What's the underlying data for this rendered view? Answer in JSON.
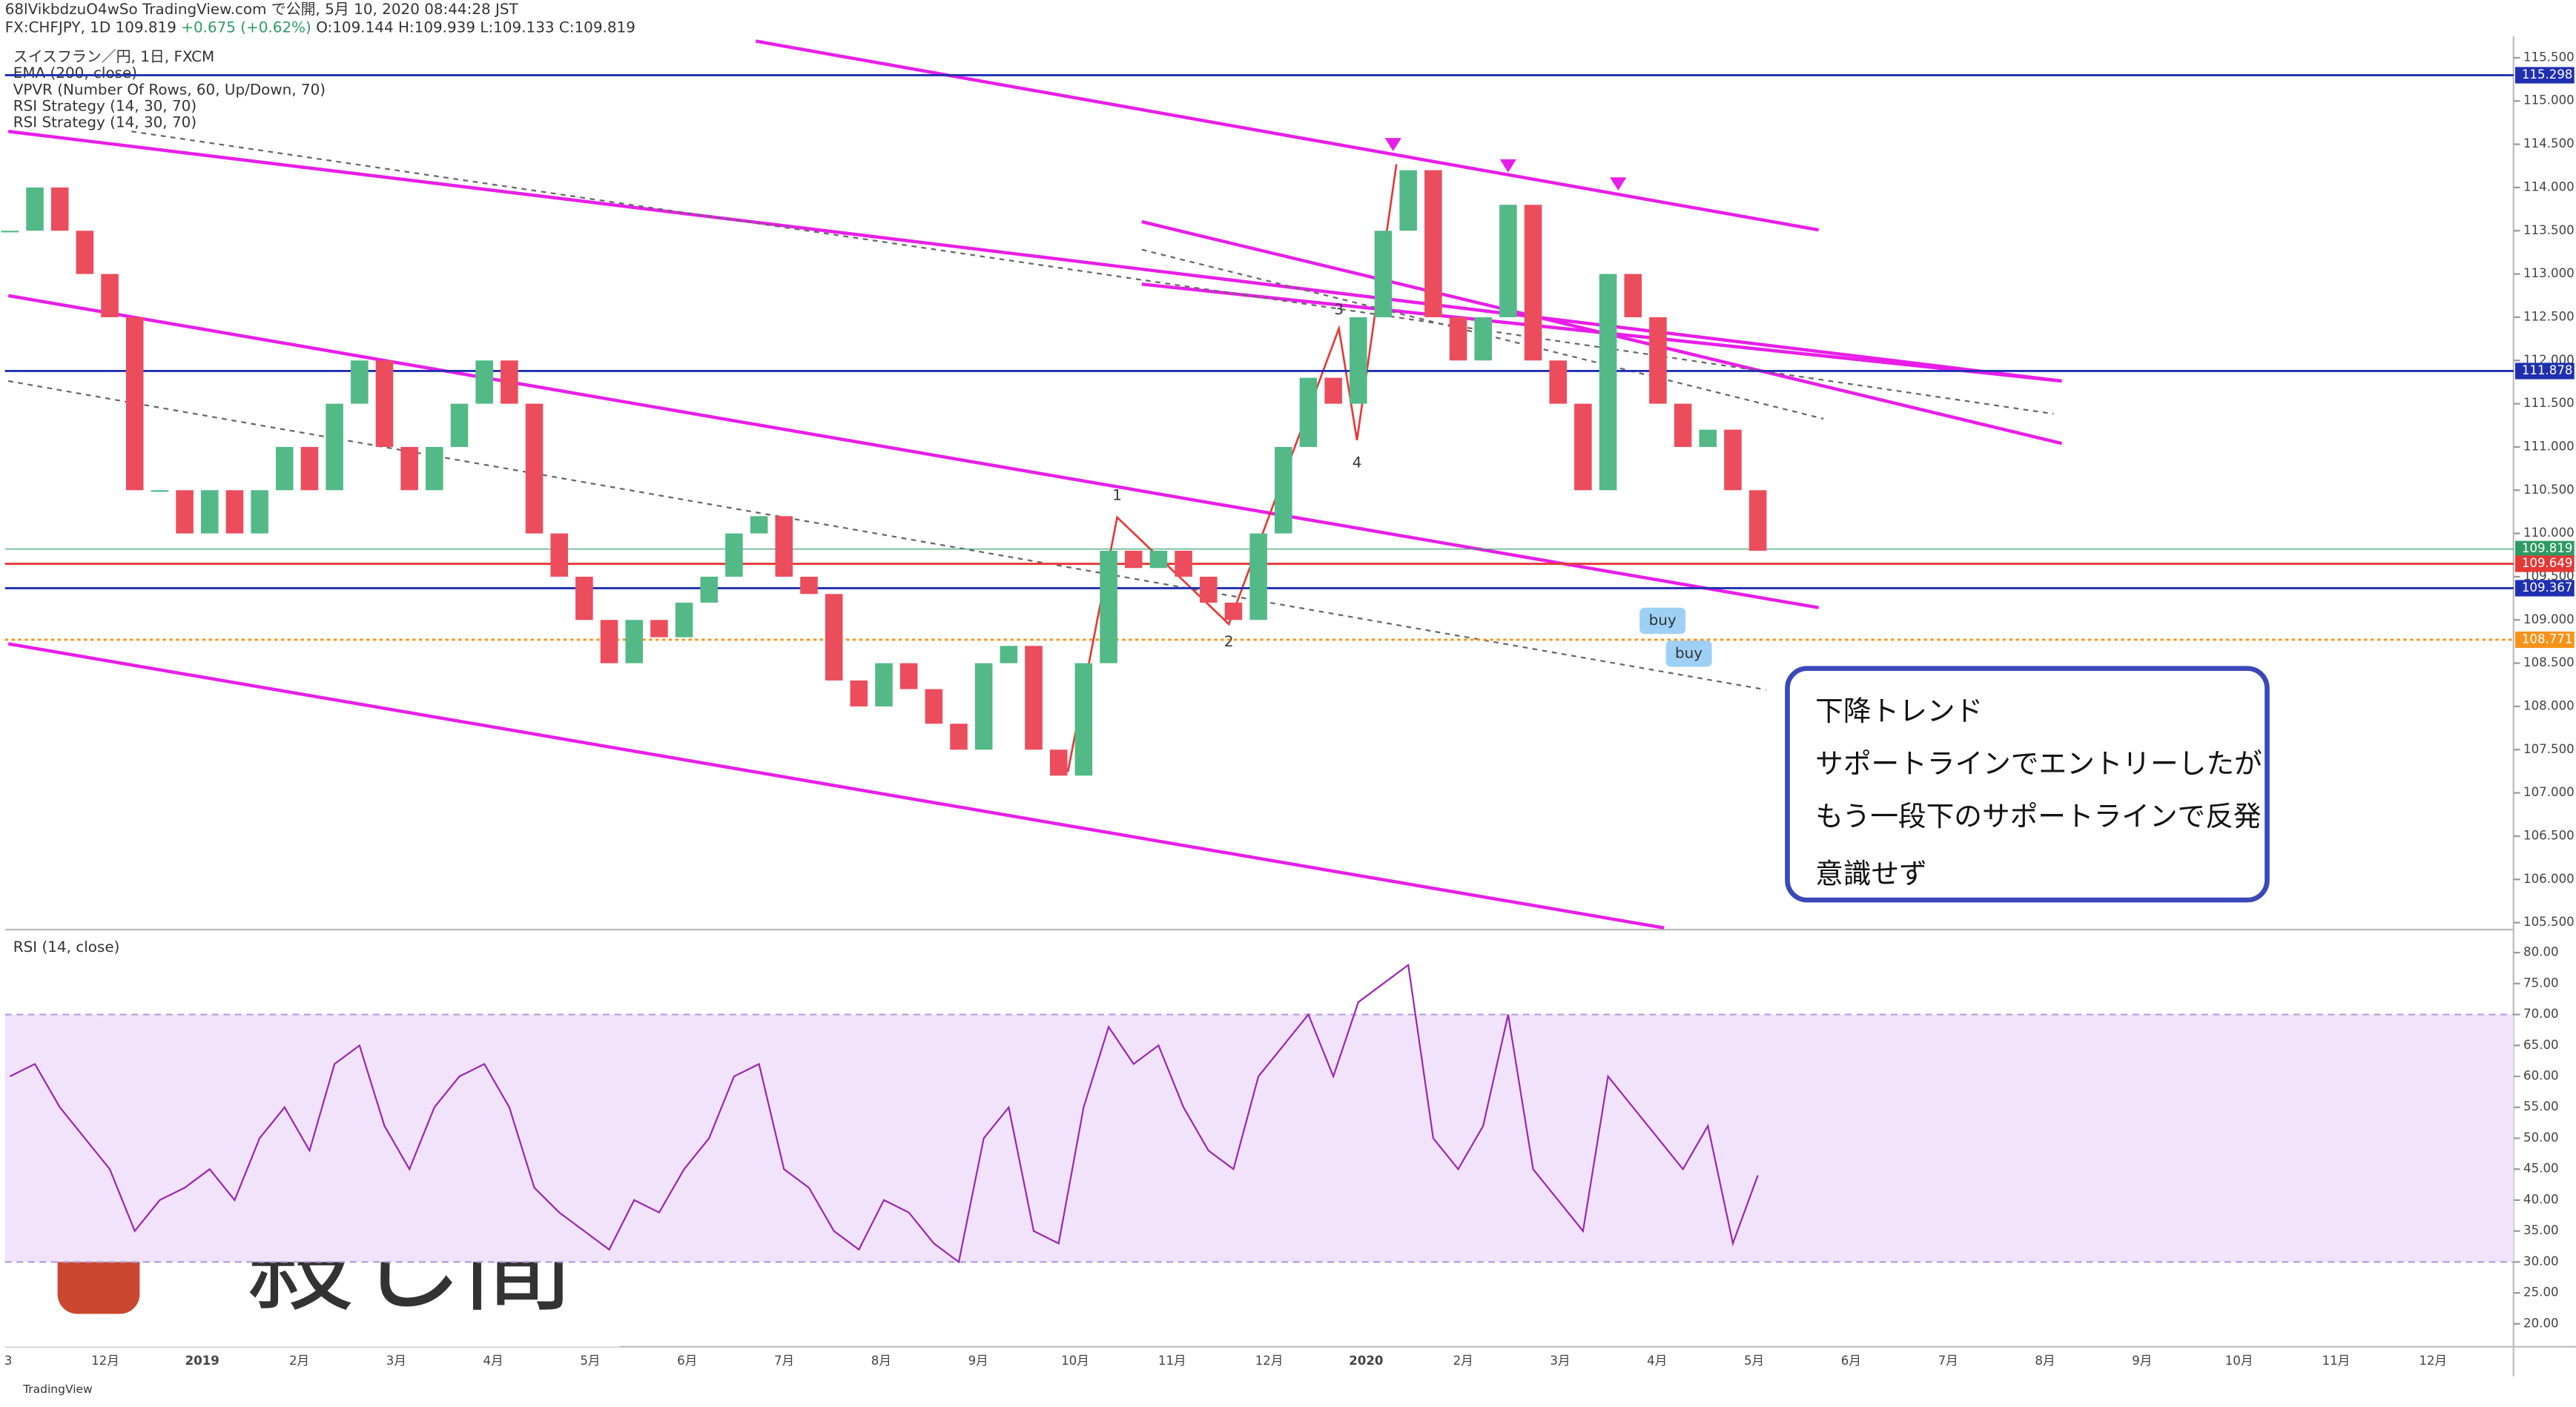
{
  "header": {
    "line1": "68lVikbdzuO4wSo TradingView.com で公開, 5月 10, 2020 08:44:28 JST",
    "symbol": "FX:CHFJPY, 1D",
    "last": "109.819",
    "change": "+0.675 (+0.62%)",
    "ohlc": "O:109.144 H:109.939 L:109.133 C:109.819"
  },
  "legend": [
    "スイスフラン／円, 1日, FXCM",
    "EMA (200, close)",
    "VPVR (Number Of Rows, 60, Up/Down, 70)",
    "RSI Strategy (14, 30, 70)",
    "RSI Strategy (14, 30, 70)"
  ],
  "chart_data": {
    "type": "candlestick",
    "x_labels": [
      "3",
      "12月",
      "2019",
      "2月",
      "3月",
      "4月",
      "5月",
      "6月",
      "7月",
      "8月",
      "9月",
      "10月",
      "11月",
      "12月",
      "2020",
      "2月",
      "3月",
      "4月",
      "5月",
      "6月",
      "7月",
      "8月",
      "9月",
      "10月",
      "11月",
      "12月"
    ],
    "close": [
      113.5,
      114.0,
      113.5,
      113.0,
      112.5,
      110.5,
      110.5,
      110.0,
      110.5,
      110.0,
      110.5,
      111.0,
      110.5,
      111.5,
      112.0,
      111.0,
      110.5,
      111.0,
      111.5,
      112.0,
      111.5,
      110.0,
      109.5,
      109.0,
      108.5,
      109.0,
      108.8,
      109.2,
      109.5,
      110.0,
      110.2,
      109.5,
      109.3,
      108.3,
      108.0,
      108.5,
      108.2,
      107.8,
      107.5,
      108.5,
      108.7,
      107.5,
      107.2,
      108.5,
      109.8,
      109.6,
      109.8,
      109.5,
      109.2,
      109.0,
      110.0,
      111.0,
      111.8,
      111.5,
      112.5,
      113.5,
      114.2,
      112.5,
      112.0,
      112.5,
      113.8,
      112.0,
      111.5,
      110.5,
      113.0,
      112.5,
      111.5,
      111.0,
      111.2,
      110.5,
      109.8
    ],
    "up_color": "#53b987",
    "down_color": "#eb4d5c",
    "ylim": [
      105.42,
      115.75
    ],
    "yticks": [
      {
        "value": 105.5,
        "label": "105.500"
      },
      {
        "value": 106,
        "label": "106.000"
      },
      {
        "value": 106.5,
        "label": "106.500"
      },
      {
        "value": 107,
        "label": "107.000"
      },
      {
        "value": 107.5,
        "label": "107.500"
      },
      {
        "value": 108,
        "label": "108.000"
      },
      {
        "value": 108.5,
        "label": "108.500"
      },
      {
        "value": 109,
        "label": "109.000"
      },
      {
        "value": 109.5,
        "label": "109.500"
      },
      {
        "value": 110,
        "label": "110.000"
      },
      {
        "value": 110.5,
        "label": "110.500"
      },
      {
        "value": 111,
        "label": "111.000"
      },
      {
        "value": 111.5,
        "label": "111.500"
      },
      {
        "value": 112,
        "label": "112.000"
      },
      {
        "value": 112.5,
        "label": "112.500"
      },
      {
        "value": 113,
        "label": "113.000"
      },
      {
        "value": 113.5,
        "label": "113.500"
      },
      {
        "value": 114,
        "label": "114.000"
      },
      {
        "value": 114.5,
        "label": "114.500"
      },
      {
        "value": 115,
        "label": "115.000"
      },
      {
        "value": 115.5,
        "label": "115.500"
      }
    ],
    "price_lines": [
      {
        "value": 115.298,
        "label": "115.298",
        "color": "#1f2fb0"
      },
      {
        "value": 111.878,
        "label": "111.878",
        "color": "#1f2fb0"
      },
      {
        "value": 109.819,
        "label": "109.819",
        "color": "#2e9b62"
      },
      {
        "value": 109.649,
        "label": "109.649",
        "color": "#e53935"
      },
      {
        "value": 109.367,
        "label": "109.367",
        "color": "#1f2fb0"
      },
      {
        "value": 108.771,
        "label": "108.771",
        "color": "#f7931a"
      }
    ],
    "rsi": {
      "title": "RSI (14, close)",
      "color": "#9c27b0",
      "values": [
        60,
        62,
        55,
        50,
        45,
        35,
        40,
        42,
        45,
        40,
        50,
        55,
        48,
        62,
        65,
        52,
        45,
        55,
        60,
        62,
        55,
        42,
        38,
        35,
        32,
        40,
        38,
        45,
        50,
        60,
        62,
        45,
        42,
        35,
        32,
        40,
        38,
        33,
        30,
        50,
        55,
        35,
        33,
        55,
        68,
        62,
        65,
        55,
        48,
        45,
        60,
        65,
        70,
        60,
        72,
        75,
        78,
        50,
        45,
        52,
        70,
        45,
        40,
        35,
        60,
        55,
        50,
        45,
        52,
        33,
        44
      ],
      "ylim": [
        16.3,
        83.2
      ],
      "band": [
        30,
        70
      ],
      "yticks": [
        {
          "value": 20,
          "label": "20.00"
        },
        {
          "value": 25,
          "label": "25.00"
        },
        {
          "value": 30,
          "label": "30.00"
        },
        {
          "value": 35,
          "label": "35.00"
        },
        {
          "value": 40,
          "label": "40.00"
        },
        {
          "value": 45,
          "label": "45.00"
        },
        {
          "value": 50,
          "label": "50.00"
        },
        {
          "value": 55,
          "label": "55.00"
        },
        {
          "value": 60,
          "label": "60.00"
        },
        {
          "value": 65,
          "label": "65.00"
        },
        {
          "value": 70,
          "label": "70.00"
        },
        {
          "value": 75,
          "label": "75.00"
        },
        {
          "value": 80,
          "label": "80.00"
        }
      ]
    }
  },
  "annotations": {
    "waves": [
      "1",
      "2",
      "3",
      "4"
    ],
    "buy": [
      "buy",
      "buy"
    ],
    "note": [
      "下降トレンド",
      "サポートラインでエントリーしたが",
      "もう一段下のサポートラインで反発",
      "意識せず"
    ]
  },
  "logo_text": "殺し間",
  "brand": "TradingView"
}
